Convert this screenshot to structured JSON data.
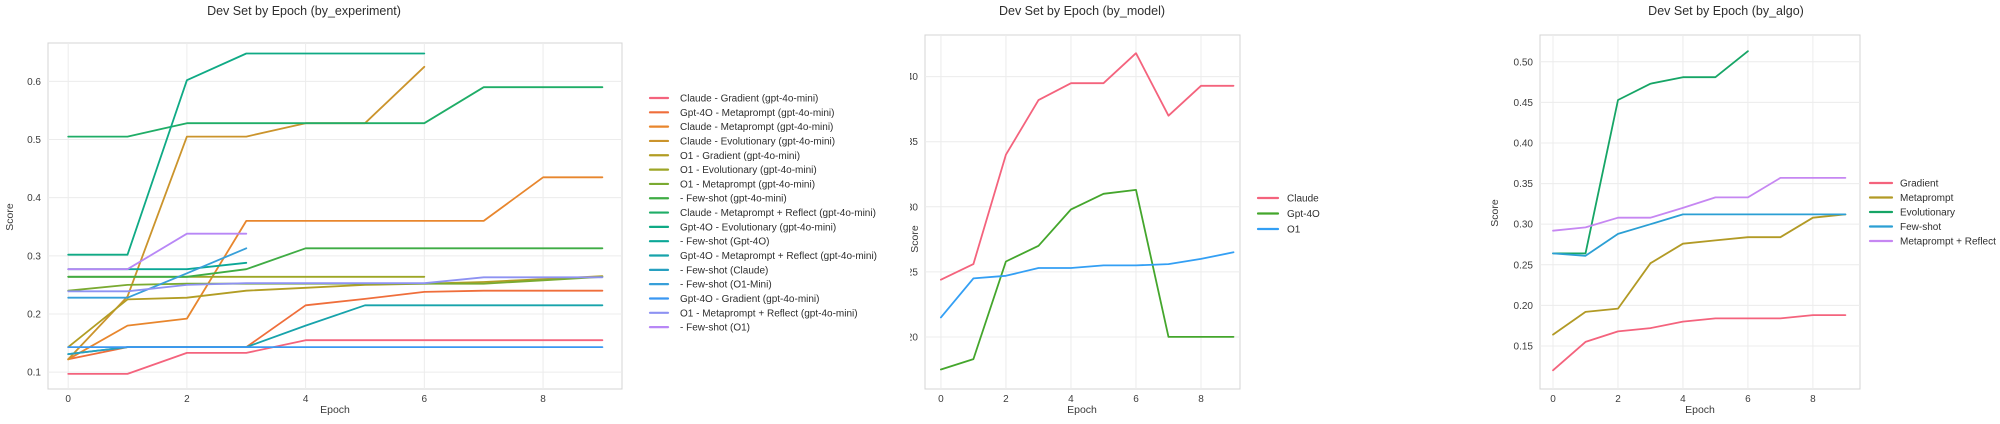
{
  "chart_data": [
    {
      "type": "line",
      "title": "Dev Set by Epoch (by_experiment)",
      "xlabel": "Epoch",
      "ylabel": "Score",
      "x": [
        0,
        1,
        2,
        3,
        4,
        5,
        6,
        7,
        8,
        9
      ],
      "xlim": [
        -0.34,
        9.33
      ],
      "ylim": [
        0.071,
        0.666
      ],
      "x_tick_values": [
        0,
        2,
        4,
        6,
        8
      ],
      "x_tick_labels": [
        "0",
        "2",
        "4",
        "6",
        "8"
      ],
      "y_tick_values": [
        0.1,
        0.2,
        0.3,
        0.4,
        0.5,
        0.6
      ],
      "y_tick_labels": [
        "0.1",
        "0.2",
        "0.3",
        "0.4",
        "0.5",
        "0.6"
      ],
      "grid": true,
      "legend_position": "right",
      "series": [
        {
          "name": "Claude - Gradient (gpt-4o-mini)",
          "color": "#f4637d",
          "values": [
            0.097,
            0.097,
            0.133,
            0.133,
            0.155,
            0.155,
            0.155,
            0.155,
            0.155,
            0.155
          ]
        },
        {
          "name": "Gpt-4O - Metaprompt (gpt-4o-mini)",
          "color": "#ef6e3b",
          "values": [
            0.122,
            0.143,
            0.143,
            0.143,
            0.215,
            0.226,
            0.238,
            0.24,
            0.24,
            0.24
          ]
        },
        {
          "name": "Claude - Metaprompt (gpt-4o-mini)",
          "color": "#e8862d",
          "values": [
            0.122,
            0.18,
            0.192,
            0.36,
            0.36,
            0.36,
            0.36,
            0.36,
            0.435,
            0.435
          ]
        },
        {
          "name": "Claude - Evolutionary (gpt-4o-mini)",
          "color": "#cb942c",
          "values": [
            0.122,
            0.23,
            0.505,
            0.505,
            0.528,
            0.528,
            0.625
          ]
        },
        {
          "name": "O1 - Gradient (gpt-4o-mini)",
          "color": "#b29d24",
          "values": [
            0.143,
            0.225,
            0.228,
            0.24,
            0.245,
            0.25,
            0.252,
            0.255,
            0.26,
            0.265
          ]
        },
        {
          "name": "O1 - Evolutionary (gpt-4o-mini)",
          "color": "#9da627",
          "values": [
            0.264,
            0.264,
            0.264,
            0.264,
            0.264,
            0.264,
            0.264
          ]
        },
        {
          "name": "O1 - Metaprompt (gpt-4o-mini)",
          "color": "#7aaa31",
          "values": [
            0.24,
            0.25,
            0.252,
            0.252,
            0.252,
            0.252,
            0.252,
            0.252,
            0.258,
            0.264
          ]
        },
        {
          "name": " - Few-shot (gpt-4o-mini)",
          "color": "#3fac44",
          "values": [
            0.264,
            0.264,
            0.264,
            0.277,
            0.313,
            0.313,
            0.313,
            0.313,
            0.313,
            0.313
          ]
        },
        {
          "name": "Claude - Metaprompt + Reflect (gpt-4o-mini)",
          "color": "#1fad67",
          "values": [
            0.505,
            0.505,
            0.528,
            0.528,
            0.528,
            0.528,
            0.528,
            0.59,
            0.59,
            0.59
          ]
        },
        {
          "name": "Gpt-4O - Evolutionary (gpt-4o-mini)",
          "color": "#0faa85",
          "values": [
            0.302,
            0.302,
            0.602,
            0.648,
            0.648,
            0.648,
            0.648
          ]
        },
        {
          "name": " - Few-shot (Gpt-4O)",
          "color": "#0ba797",
          "values": [
            0.277,
            0.277,
            0.277,
            0.288
          ]
        },
        {
          "name": "Gpt-4O - Metaprompt + Reflect (gpt-4o-mini)",
          "color": "#17a3ab",
          "values": [
            0.131,
            0.143,
            0.143,
            0.143,
            0.18,
            0.215,
            0.215,
            0.215,
            0.215,
            0.215
          ]
        },
        {
          "name": " - Few-shot (Claude)",
          "color": "#27a0c0",
          "values": [
            0.131,
            0.143,
            0.143,
            0.143
          ]
        },
        {
          "name": " - Few-shot (O1-Mini)",
          "color": "#379fd9",
          "values": [
            0.228,
            0.228,
            0.27,
            0.313
          ]
        },
        {
          "name": "Gpt-4O - Gradient (gpt-4o-mini)",
          "color": "#3a97f2",
          "values": [
            0.143,
            0.143,
            0.143,
            0.143,
            0.143,
            0.143,
            0.143,
            0.143,
            0.143,
            0.143
          ]
        },
        {
          "name": "O1 - Metaprompt + Reflect (gpt-4o-mini)",
          "color": "#8e92f2",
          "values": [
            0.239,
            0.239,
            0.25,
            0.253,
            0.253,
            0.253,
            0.253,
            0.263,
            0.263,
            0.263
          ]
        },
        {
          "name": " - Few-shot (O1)",
          "color": "#b887f6",
          "values": [
            0.277,
            0.277,
            0.338,
            0.338
          ]
        }
      ]
    },
    {
      "type": "line",
      "title": "Dev Set by Epoch (by_model)",
      "xlabel": "Epoch",
      "ylabel": "Score",
      "x": [
        0,
        1,
        2,
        3,
        4,
        5,
        6,
        7,
        8,
        9
      ],
      "xlim": [
        -0.49,
        9.2
      ],
      "ylim": [
        0.16,
        0.432
      ],
      "x_tick_values": [
        0,
        2,
        4,
        6,
        8
      ],
      "x_tick_labels": [
        "0",
        "2",
        "4",
        "6",
        "8"
      ],
      "y_tick_values": [
        0.2,
        0.25,
        0.3,
        0.35,
        0.4
      ],
      "y_tick_labels": [
        "0.20",
        "0.25",
        "0.30",
        "0.35",
        "0.40"
      ],
      "grid": true,
      "legend_position": "right",
      "series": [
        {
          "name": "Claude",
          "color": "#f4637d",
          "values": [
            0.244,
            0.256,
            0.34,
            0.382,
            0.395,
            0.395,
            0.418,
            0.37,
            0.393,
            0.393
          ]
        },
        {
          "name": "Gpt-4O",
          "color": "#44a62c",
          "values": [
            0.175,
            0.183,
            0.258,
            0.27,
            0.298,
            0.31,
            0.313,
            0.2,
            0.2,
            0.2
          ]
        },
        {
          "name": "O1",
          "color": "#339ff4",
          "values": [
            0.215,
            0.245,
            0.247,
            0.253,
            0.253,
            0.255,
            0.255,
            0.256,
            0.26,
            0.265
          ]
        }
      ]
    },
    {
      "type": "line",
      "title": "Dev Set by Epoch (by_algo)",
      "xlabel": "Epoch",
      "ylabel": "Score",
      "x": [
        0,
        1,
        2,
        3,
        4,
        5,
        6,
        7,
        8,
        9
      ],
      "xlim": [
        -0.4,
        9.45
      ],
      "ylim": [
        0.097,
        0.533
      ],
      "x_tick_values": [
        0,
        2,
        4,
        6,
        8
      ],
      "x_tick_labels": [
        "0",
        "2",
        "4",
        "6",
        "8"
      ],
      "y_tick_values": [
        0.15,
        0.2,
        0.25,
        0.3,
        0.35,
        0.4,
        0.45,
        0.5
      ],
      "y_tick_labels": [
        "0.15",
        "0.20",
        "0.25",
        "0.30",
        "0.35",
        "0.40",
        "0.45",
        "0.50"
      ],
      "grid": true,
      "legend_position": "right",
      "series": [
        {
          "name": "Gradient",
          "color": "#f4637d",
          "values": [
            0.12,
            0.155,
            0.168,
            0.172,
            0.18,
            0.184,
            0.184,
            0.184,
            0.188,
            0.188
          ]
        },
        {
          "name": "Metaprompt",
          "color": "#b29a25",
          "values": [
            0.164,
            0.192,
            0.196,
            0.252,
            0.276,
            0.28,
            0.284,
            0.284,
            0.308,
            0.312
          ]
        },
        {
          "name": "Evolutionary",
          "color": "#16a566",
          "values": [
            0.264,
            0.264,
            0.453,
            0.473,
            0.481,
            0.481,
            0.513
          ]
        },
        {
          "name": "Few-shot",
          "color": "#2b9fd4",
          "values": [
            0.264,
            0.261,
            0.288,
            0.3,
            0.312,
            0.312,
            0.312,
            0.312,
            0.312,
            0.312
          ]
        },
        {
          "name": "Metaprompt + Reflect",
          "color": "#c687f2",
          "values": [
            0.292,
            0.296,
            0.308,
            0.308,
            0.32,
            0.333,
            0.333,
            0.357,
            0.357,
            0.357
          ]
        }
      ]
    }
  ]
}
